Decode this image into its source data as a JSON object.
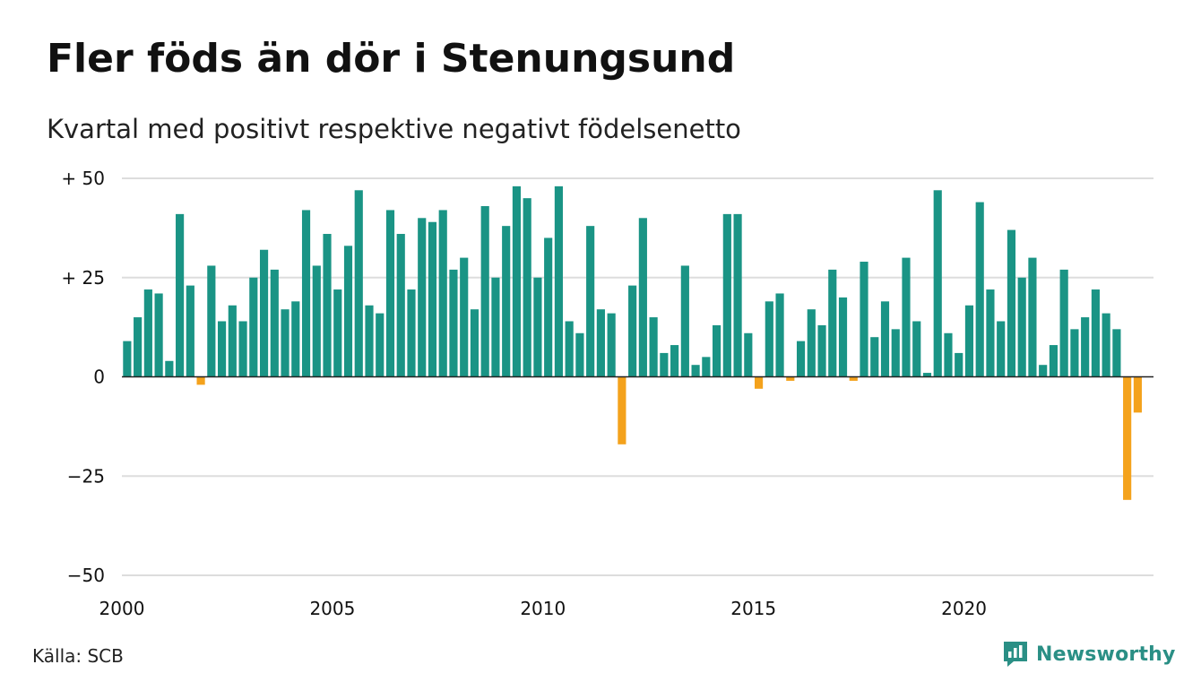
{
  "title": "Fler föds än dör i Stenungsund",
  "subtitle": "Kvartal med positivt respektive negativt födelsenetto",
  "source": "Källa: SCB",
  "brand": {
    "name": "Newsworthy",
    "icon": "chart-bubble-icon"
  },
  "colors": {
    "positive": "#1a9485",
    "negative": "#f4a21c",
    "grid": "#dddddd",
    "axis": "#222222",
    "brand": "#2a8f85"
  },
  "chart_data": {
    "type": "bar",
    "title": "Fler föds än dör i Stenungsund",
    "subtitle": "Kvartal med positivt respektive negativt födelsenetto",
    "xlabel": "",
    "ylabel": "",
    "x_start": 2000,
    "periods_per_year": 4,
    "xlim": [
      2000,
      2024.5
    ],
    "ylim": [
      -50,
      50
    ],
    "y_ticks": [
      50,
      25,
      0,
      -25,
      -50
    ],
    "y_tick_labels": [
      "+ 50",
      "+ 25",
      "0",
      "−25",
      "−50"
    ],
    "x_ticks": [
      2000,
      2005,
      2010,
      2015,
      2020
    ],
    "x_tick_labels": [
      "2000",
      "2005",
      "2010",
      "2015",
      "2020"
    ],
    "grid": true,
    "legend": "none",
    "values": [
      9,
      15,
      22,
      21,
      4,
      41,
      23,
      -2,
      28,
      14,
      18,
      14,
      25,
      32,
      27,
      17,
      19,
      42,
      28,
      36,
      22,
      33,
      47,
      18,
      16,
      42,
      36,
      22,
      40,
      39,
      42,
      27,
      30,
      17,
      43,
      25,
      38,
      48,
      45,
      25,
      35,
      48,
      14,
      11,
      38,
      17,
      16,
      -17,
      23,
      40,
      15,
      6,
      8,
      28,
      3,
      5,
      13,
      41,
      41,
      11,
      -3,
      19,
      21,
      -1,
      9,
      17,
      13,
      27,
      20,
      -1,
      29,
      10,
      19,
      12,
      30,
      14,
      1,
      47,
      11,
      6,
      18,
      44,
      22,
      14,
      37,
      25,
      30,
      3,
      8,
      27,
      12,
      15,
      22,
      16,
      12,
      -31,
      -9
    ]
  }
}
